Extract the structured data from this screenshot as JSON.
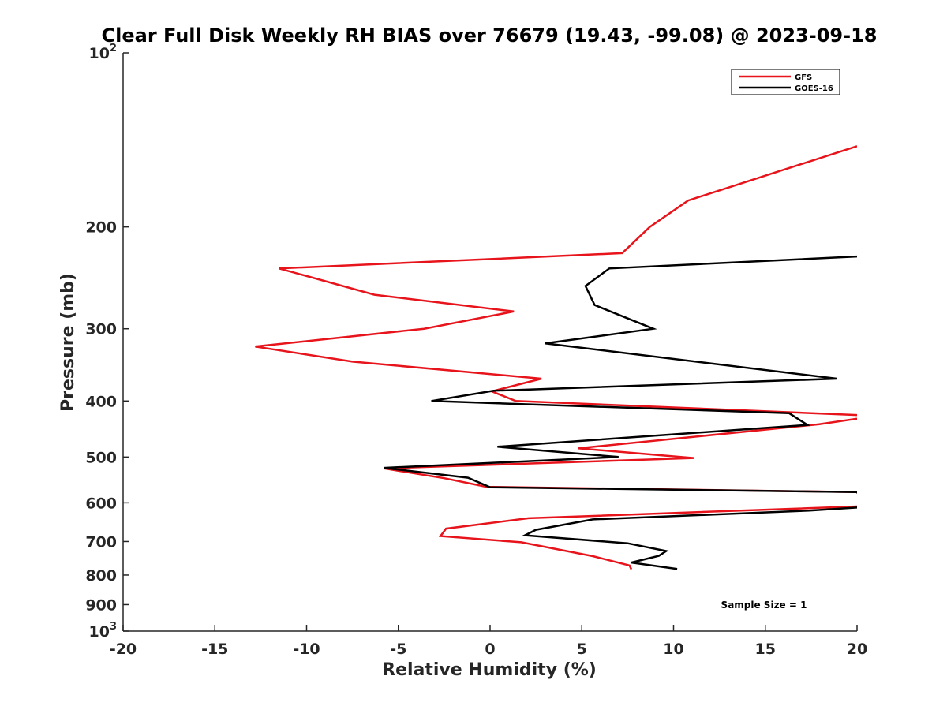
{
  "chart_data": {
    "type": "line",
    "title": "Clear Full Disk Weekly RH BIAS over 76679 (19.43, -99.08) @ 2023-09-18",
    "xlabel": "Relative Humidity (%)",
    "ylabel": "Pressure (mb)",
    "xlim": [
      -20,
      20
    ],
    "ylim": [
      100,
      1000
    ],
    "y_scale": "log",
    "y_reversed": true,
    "x_ticks": [
      -20,
      -15,
      -10,
      -5,
      0,
      5,
      10,
      15,
      20
    ],
    "x_tick_labels": [
      "-20",
      "-15",
      "-10",
      "-5",
      "0",
      "5",
      "10",
      "15",
      "20"
    ],
    "y_ticks": [
      100,
      200,
      300,
      400,
      500,
      600,
      700,
      800,
      900,
      1000
    ],
    "y_tick_labels": [
      {
        "base": "10",
        "exp": "2"
      },
      {
        "base": "200",
        "exp": ""
      },
      {
        "base": "300",
        "exp": ""
      },
      {
        "base": "400",
        "exp": ""
      },
      {
        "base": "500",
        "exp": ""
      },
      {
        "base": "600",
        "exp": ""
      },
      {
        "base": "700",
        "exp": ""
      },
      {
        "base": "800",
        "exp": ""
      },
      {
        "base": "900",
        "exp": ""
      },
      {
        "base": "10",
        "exp": "3"
      }
    ],
    "grid": false,
    "legend_position": "top-right",
    "annotation": "Sample Size = 1",
    "series": [
      {
        "name": "GFS",
        "color": "#e8141c",
        "points": [
          [
            20,
            145
          ],
          [
            10.8,
            180
          ],
          [
            8.7,
            200
          ],
          [
            7.2,
            222
          ],
          [
            -11.5,
            236
          ],
          [
            -6.3,
            262
          ],
          [
            1.3,
            280
          ],
          [
            -3.6,
            300
          ],
          [
            -12.8,
            322
          ],
          [
            -7.5,
            342
          ],
          [
            2.8,
            366
          ],
          [
            0.1,
            385
          ],
          [
            1.4,
            400
          ],
          [
            20,
            423
          ],
          [
            20.5,
            427
          ],
          [
            17.9,
            439
          ],
          [
            4.8,
            483
          ],
          [
            11.1,
            502
          ],
          [
            -5.8,
            523
          ],
          [
            -2.5,
            544
          ],
          [
            -0.2,
            563
          ],
          [
            20,
            575
          ],
          [
            20.5,
            608
          ],
          [
            2.1,
            638
          ],
          [
            -2.4,
            665
          ],
          [
            -2.7,
            685
          ],
          [
            1.7,
            702
          ],
          [
            5.6,
            742
          ],
          [
            7.6,
            770
          ],
          [
            7.7,
            782
          ]
        ]
      },
      {
        "name": "GOES-16",
        "color": "#000000",
        "points": [
          [
            20,
            225
          ],
          [
            6.5,
            236
          ],
          [
            5.2,
            253
          ],
          [
            5.7,
            273
          ],
          [
            8.9,
            300
          ],
          [
            3.0,
            318
          ],
          [
            18.9,
            366
          ],
          [
            0.2,
            384
          ],
          [
            -3.2,
            400
          ],
          [
            16.3,
            420
          ],
          [
            17.3,
            440
          ],
          [
            0.4,
            480
          ],
          [
            7.0,
            500
          ],
          [
            -5.8,
            522
          ],
          [
            -1.2,
            543
          ],
          [
            0,
            564
          ],
          [
            20,
            575
          ],
          [
            20.5,
            610
          ],
          [
            17.4,
            619
          ],
          [
            5.6,
            641
          ],
          [
            2.5,
            668
          ],
          [
            1.9,
            683
          ],
          [
            7.5,
            705
          ],
          [
            9.6,
            727
          ],
          [
            9.2,
            741
          ],
          [
            7.7,
            761
          ],
          [
            10.2,
            781
          ]
        ]
      }
    ]
  }
}
